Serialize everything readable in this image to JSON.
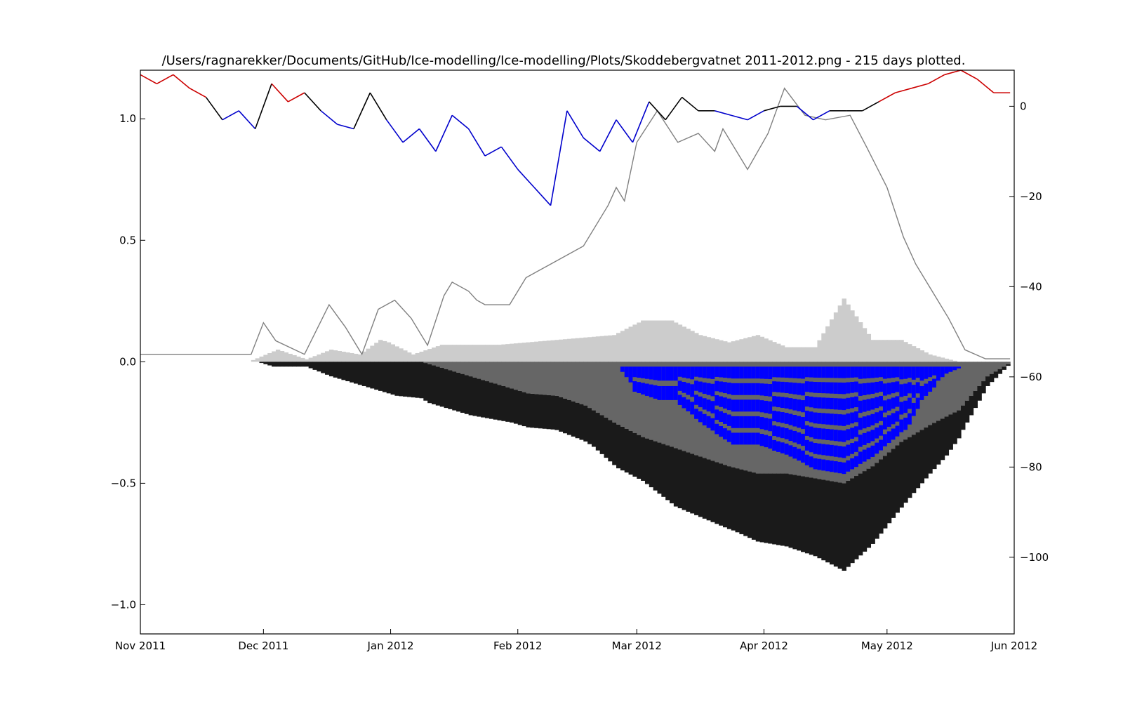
{
  "chart_data": {
    "type": "area",
    "title": "/Users/ragnarekker/Documents/GitHub/Ice-modelling/Ice-modelling/Plots/Skoddebergvatnet 2011-2012.png - 215 days plotted.",
    "xlabel": "",
    "ylabel": "",
    "y2label": "",
    "grid": false,
    "xlim": [
      "2011-11-01",
      "2012-06-01"
    ],
    "ylim": [
      -1.12,
      1.2
    ],
    "y2lim": [
      -117,
      8
    ],
    "x_ticks": [
      {
        "date": "2011-11-01",
        "label": "Nov 2011"
      },
      {
        "date": "2011-12-01",
        "label": "Dec 2011"
      },
      {
        "date": "2012-01-01",
        "label": "Jan 2012"
      },
      {
        "date": "2012-02-01",
        "label": "Feb 2012"
      },
      {
        "date": "2012-03-01",
        "label": "Mar 2012"
      },
      {
        "date": "2012-04-01",
        "label": "Apr 2012"
      },
      {
        "date": "2012-05-01",
        "label": "May 2012"
      },
      {
        "date": "2012-06-01",
        "label": "Jun 2012"
      }
    ],
    "y_ticks": [
      {
        "value": 1.0,
        "label": "1.0"
      },
      {
        "value": 0.5,
        "label": "0.5"
      },
      {
        "value": 0.0,
        "label": "0.0"
      },
      {
        "value": -0.5,
        "label": "−0.5"
      },
      {
        "value": -1.0,
        "label": "−1.0"
      }
    ],
    "y2_ticks": [
      {
        "value": 0,
        "label": "0"
      },
      {
        "value": -20,
        "label": "−20"
      },
      {
        "value": -40,
        "label": "−40"
      },
      {
        "value": -60,
        "label": "−60"
      },
      {
        "value": -80,
        "label": "−80"
      },
      {
        "value": -100,
        "label": "−100"
      }
    ],
    "colors": {
      "snow": "#cccccc",
      "slush_ice": "#666666",
      "black_ice": "#1a1a1a",
      "slush": "#0000ff",
      "snow_depth_line": "#808080",
      "temp_below_zero": "#0000cc",
      "temp_near_zero": "#000000",
      "temp_above_zero": "#cc0000"
    },
    "series": [
      {
        "key": "snow_layer",
        "x_day": [
          0,
          26,
          33,
          40,
          46,
          53,
          58,
          60,
          66,
          73,
          80,
          87,
          94,
          101,
          108,
          115,
          122,
          129,
          136,
          143,
          150,
          157,
          164,
          171,
          178,
          185,
          192,
          199,
          206,
          212
        ],
        "thickness": [
          0,
          0,
          0.05,
          0.01,
          0.05,
          0.03,
          0.09,
          0.08,
          0.03,
          0.07,
          0.07,
          0.07,
          0.08,
          0.09,
          0.1,
          0.11,
          0.17,
          0.17,
          0.11,
          0.08,
          0.11,
          0.06,
          0.06,
          0.26,
          0.09,
          0.09,
          0.03,
          0,
          0,
          0
        ]
      },
      {
        "key": "slush_ice_layer",
        "x_day": [
          0,
          68,
          80,
          94,
          101,
          108,
          115,
          122,
          129,
          136,
          143,
          150,
          157,
          164,
          171,
          178,
          185,
          192,
          199,
          206,
          212
        ],
        "thickness": [
          0,
          0,
          0.06,
          0.13,
          0.14,
          0.18,
          0.25,
          0.31,
          0.35,
          0.39,
          0.43,
          0.46,
          0.46,
          0.48,
          0.5,
          0.43,
          0.33,
          0.26,
          0.2,
          0.06,
          0
        ]
      },
      {
        "key": "slush_layer",
        "x_day": [
          0,
          116,
          120,
          126,
          130,
          137,
          144,
          150,
          157,
          164,
          171,
          178,
          185,
          190,
          196,
          200,
          212
        ],
        "thickness": [
          0,
          0,
          0.12,
          0.16,
          0.16,
          0.26,
          0.34,
          0.34,
          0.38,
          0.44,
          0.5,
          0.44,
          0.32,
          0.16,
          0.04,
          0,
          0
        ]
      },
      {
        "key": "black_ice_layer",
        "x_day": [
          0,
          28,
          32,
          40,
          46,
          54,
          58,
          62,
          68,
          70,
          80,
          90,
          100,
          110,
          116,
          122,
          130,
          137,
          144,
          150,
          157,
          164,
          171,
          178,
          185,
          190,
          196,
          200,
          206,
          212
        ],
        "thickness": [
          0,
          0,
          0.02,
          0.02,
          0.06,
          0.1,
          0.12,
          0.14,
          0.15,
          0.16,
          0.16,
          0.14,
          0.14,
          0.15,
          0.18,
          0.18,
          0.24,
          0.25,
          0.26,
          0.28,
          0.3,
          0.32,
          0.36,
          0.32,
          0.27,
          0.22,
          0.16,
          0.1,
          0.04,
          0
        ]
      },
      {
        "key": "snow_depth_line",
        "x_day": [
          0,
          27,
          30,
          33,
          40,
          46,
          50,
          54,
          58,
          62,
          66,
          70,
          74,
          76,
          80,
          82,
          84,
          90,
          94,
          100,
          108,
          114,
          116,
          118,
          121,
          126,
          131,
          136,
          140,
          142,
          148,
          153,
          157,
          162,
          167,
          173,
          177,
          182,
          186,
          189,
          193,
          197,
          201,
          206,
          208,
          212
        ],
        "y2": [
          -55,
          -55,
          -48,
          -52,
          -55,
          -44,
          -49,
          -55,
          -45,
          -43,
          -47,
          -53,
          -42,
          -39,
          -41,
          -43,
          -44,
          -44,
          -38,
          -35,
          -31,
          -22,
          -18,
          -21,
          -8,
          -1,
          -8,
          -6,
          -10,
          -5,
          -14,
          -6,
          4,
          -2,
          -3,
          -2,
          -9,
          -18,
          -29,
          -35,
          -41,
          -47,
          -54,
          -56,
          -56,
          -56
        ]
      },
      {
        "key": "air_temperature",
        "x_day": [
          0,
          4,
          8,
          12,
          16,
          20,
          24,
          28,
          32,
          36,
          40,
          44,
          48,
          52,
          56,
          60,
          64,
          68,
          72,
          76,
          80,
          84,
          88,
          92,
          96,
          100,
          104,
          108,
          112,
          116,
          120,
          124,
          128,
          132,
          136,
          140,
          144,
          148,
          152,
          156,
          160,
          164,
          168,
          172,
          176,
          180,
          184,
          188,
          192,
          196,
          200,
          204,
          208,
          212
        ],
        "y2": [
          7,
          5,
          7,
          4,
          2,
          -3,
          -1,
          -5,
          5,
          1,
          3,
          -1,
          -4,
          -5,
          3,
          -3,
          -8,
          -5,
          -10,
          -2,
          -5,
          -11,
          -9,
          -14,
          -18,
          -22,
          -1,
          -7,
          -10,
          -3,
          -8,
          1,
          -3,
          2,
          -1,
          -1,
          -2,
          -3,
          -1,
          0,
          0,
          -3,
          -1,
          -1,
          -1,
          1,
          3,
          4,
          5,
          7,
          8,
          6,
          3,
          3
        ]
      }
    ]
  }
}
